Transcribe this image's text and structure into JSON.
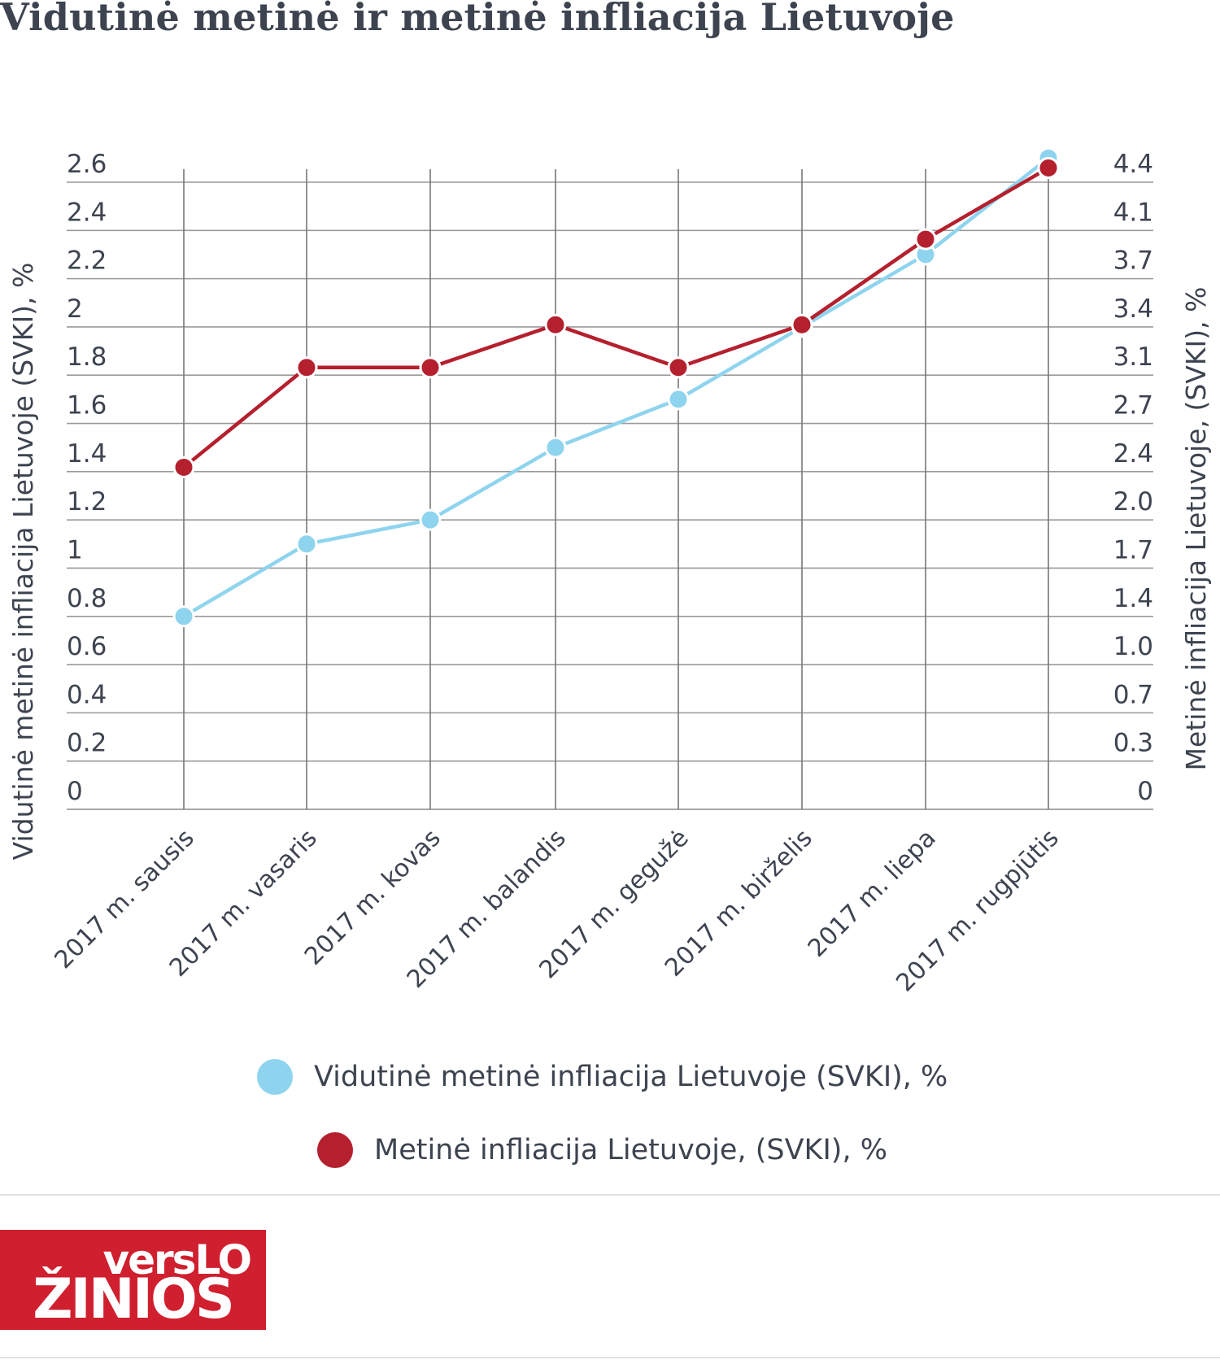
{
  "title": "Vidutinė metinė ir metinė infliacija Lietuvoje",
  "chart_data": {
    "type": "line",
    "categories": [
      "2017 m. sausis",
      "2017 m. vasaris",
      "2017 m. kovas",
      "2017 m. balandis",
      "2017 m. gegužė",
      "2017 m. birželis",
      "2017 m. liepa",
      "2017 m. rugpjūtis"
    ],
    "series": [
      {
        "name": "Vidutinė metinė infliacija Lietuvoje (SVKI), %",
        "axis": "left",
        "color": "#8fd4ee",
        "values": [
          0.8,
          1.1,
          1.2,
          1.5,
          1.7,
          2.0,
          2.3,
          2.7
        ]
      },
      {
        "name": "Metinė infliacija Lietuvoje, (SVKI), %",
        "axis": "right",
        "color": "#b5202e",
        "values": [
          2.4,
          3.1,
          3.1,
          3.4,
          3.1,
          3.4,
          4.0,
          4.5
        ]
      }
    ],
    "ylabel": "Vidutinė metinė infliacija Lietuvoje (SVKI), %",
    "y2label": "Metinė infliacija Lietuvoje, (SVKI), %",
    "ylim": [
      0,
      2.6
    ],
    "y2lim": [
      0,
      4.4
    ],
    "yticks": [
      "0",
      "0.2",
      "0.4",
      "0.6",
      "0.8",
      "1",
      "1.2",
      "1.4",
      "1.6",
      "1.8",
      "2",
      "2.2",
      "2.4",
      "2.6"
    ],
    "y2ticks": [
      "0",
      "0.3",
      "0.7",
      "1.0",
      "1.4",
      "1.7",
      "2.0",
      "2.4",
      "2.7",
      "3.1",
      "3.4",
      "3.7",
      "4.1",
      "4.4"
    ],
    "grid": true,
    "legend_position": "bottom"
  },
  "logo": {
    "line1": "versLO",
    "line2": "ŽINIOS",
    "color": "#d01f2e"
  }
}
